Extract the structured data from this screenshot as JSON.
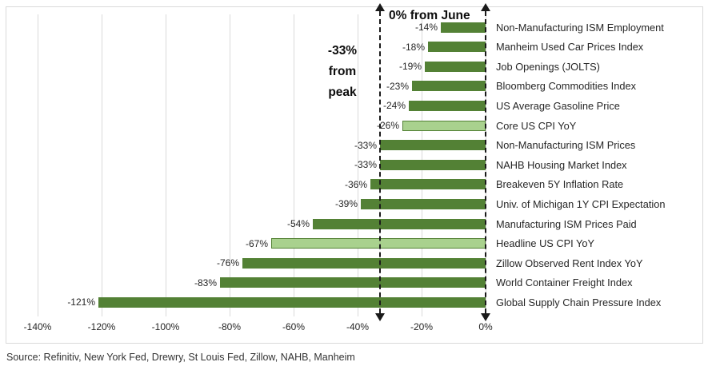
{
  "chart_data": {
    "type": "bar",
    "orientation": "horizontal",
    "title": "",
    "categories": [
      "Non-Manufacturing ISM Employment",
      "Manheim Used Car Prices Index",
      "Job Openings (JOLTS)",
      "Bloomberg Commodities Index",
      "US Average Gasoline Price",
      "Core US CPI YoY",
      "Non-Manufacturing ISM Prices",
      "NAHB Housing Market Index",
      "Breakeven 5Y Inflation Rate",
      "Univ. of Michigan 1Y CPI Expectation",
      "Manufacturing ISM Prices Paid",
      "Headline US CPI YoY",
      "Zillow Observed Rent Index YoY",
      "World Container Freight Index",
      "Global Supply Chain Pressure Index"
    ],
    "values": [
      -14,
      -18,
      -19,
      -23,
      -24,
      -26,
      -33,
      -33,
      -36,
      -39,
      -54,
      -67,
      -76,
      -83,
      -121
    ],
    "value_labels": [
      "-14%",
      "-18%",
      "-19%",
      "-23%",
      "-24%",
      "-26%",
      "-33%",
      "-33%",
      "-36%",
      "-39%",
      "-54%",
      "-67%",
      "-76%",
      "-83%",
      "-121%"
    ],
    "highlight_indices": [
      5,
      11
    ],
    "xlim": [
      -140,
      0
    ],
    "x_ticks": [
      -140,
      -120,
      -100,
      -80,
      -60,
      -40,
      -20,
      0
    ],
    "x_tick_labels": [
      "-140%",
      "-120%",
      "-100%",
      "-80%",
      "-60%",
      "-40%",
      "-20%",
      "0%"
    ],
    "grid": true,
    "legend": false,
    "reference_lines": [
      {
        "x": -33,
        "label": "-33% from peak"
      },
      {
        "x": 0,
        "label": "0% from June"
      }
    ],
    "colors": {
      "bar": "#538135",
      "bar_highlight_fill": "#a9d18e",
      "bar_highlight_border": "#538135",
      "gridline": "#d9d9d9",
      "reference_line": "#1a1a1a",
      "text": "#262626"
    }
  },
  "annotations": {
    "from_june": "0% from June",
    "from_peak_lines": [
      "-33%",
      "from",
      "peak"
    ]
  },
  "source_note": "Source: Refinitiv, New York Fed, Drewry, St Louis Fed, Zillow, NAHB, Manheim"
}
